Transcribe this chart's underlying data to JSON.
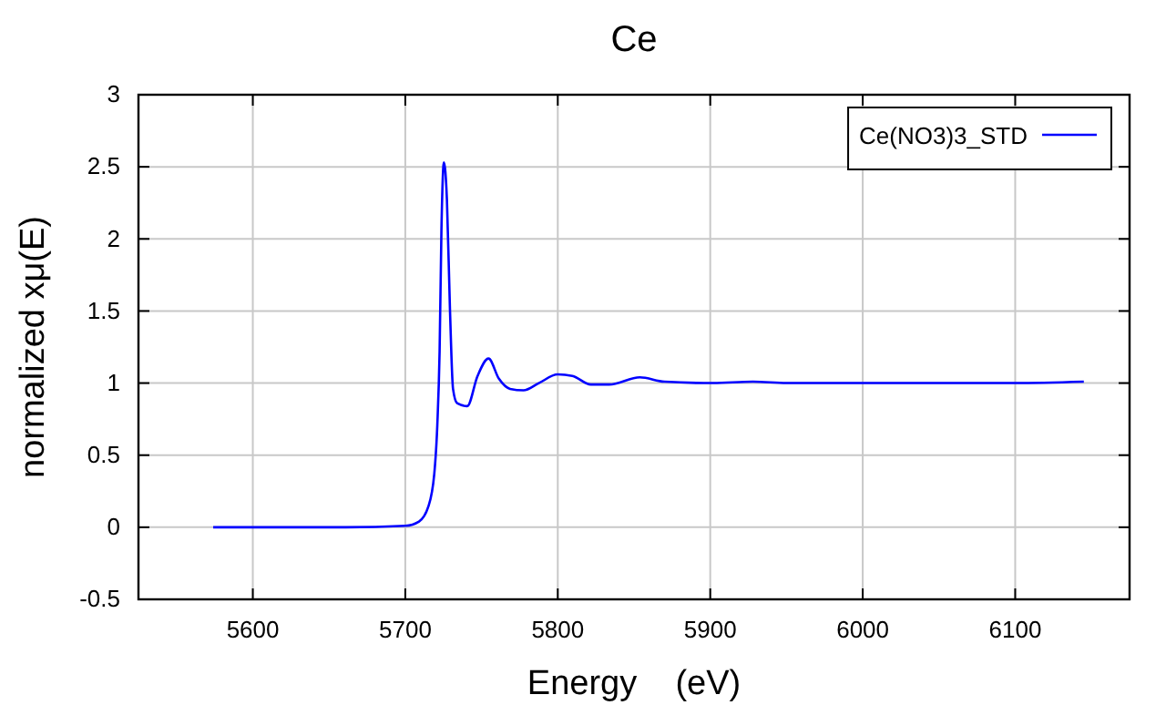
{
  "chart_data": {
    "type": "line",
    "title": "Ce",
    "xlabel": "Energy    (eV)",
    "ylabel": "normalized xμ(E)",
    "xlim": [
      5525,
      6175
    ],
    "xticks": [
      5600,
      5700,
      5800,
      5900,
      6000,
      6100
    ],
    "ylim": [
      -0.5,
      3
    ],
    "yticks": [
      -0.5,
      0,
      0.5,
      1,
      1.5,
      2,
      2.5,
      3
    ],
    "grid": true,
    "legend": "top right",
    "marker": "none",
    "line_style": "solid",
    "series": [
      {
        "name": "Ce(NO3)3_STD",
        "color": "#0000ff",
        "x": [
          5574,
          5600,
          5630,
          5661,
          5700,
          5709,
          5715,
          5719,
          5721,
          5722.5,
          5723.7,
          5725.3,
          5727.3,
          5729.3,
          5731.3,
          5734,
          5740.6,
          5747.4,
          5754.6,
          5761.4,
          5768.7,
          5777.5,
          5787.6,
          5800,
          5809.6,
          5821.7,
          5833.7,
          5853.8,
          5869.9,
          5902,
          5928,
          5950,
          6000,
          6050,
          6100,
          6145
        ],
        "values": [
          0,
          0,
          0,
          0,
          0.01,
          0.04,
          0.14,
          0.37,
          0.71,
          1.22,
          2.06,
          2.53,
          2.27,
          1.51,
          0.96,
          0.86,
          0.84,
          1.05,
          1.17,
          1.03,
          0.96,
          0.95,
          1.0,
          1.06,
          1.05,
          0.99,
          0.99,
          1.04,
          1.01,
          1.0,
          1.01,
          1.0,
          1.0,
          1.0,
          1.0,
          1.01
        ]
      }
    ]
  }
}
